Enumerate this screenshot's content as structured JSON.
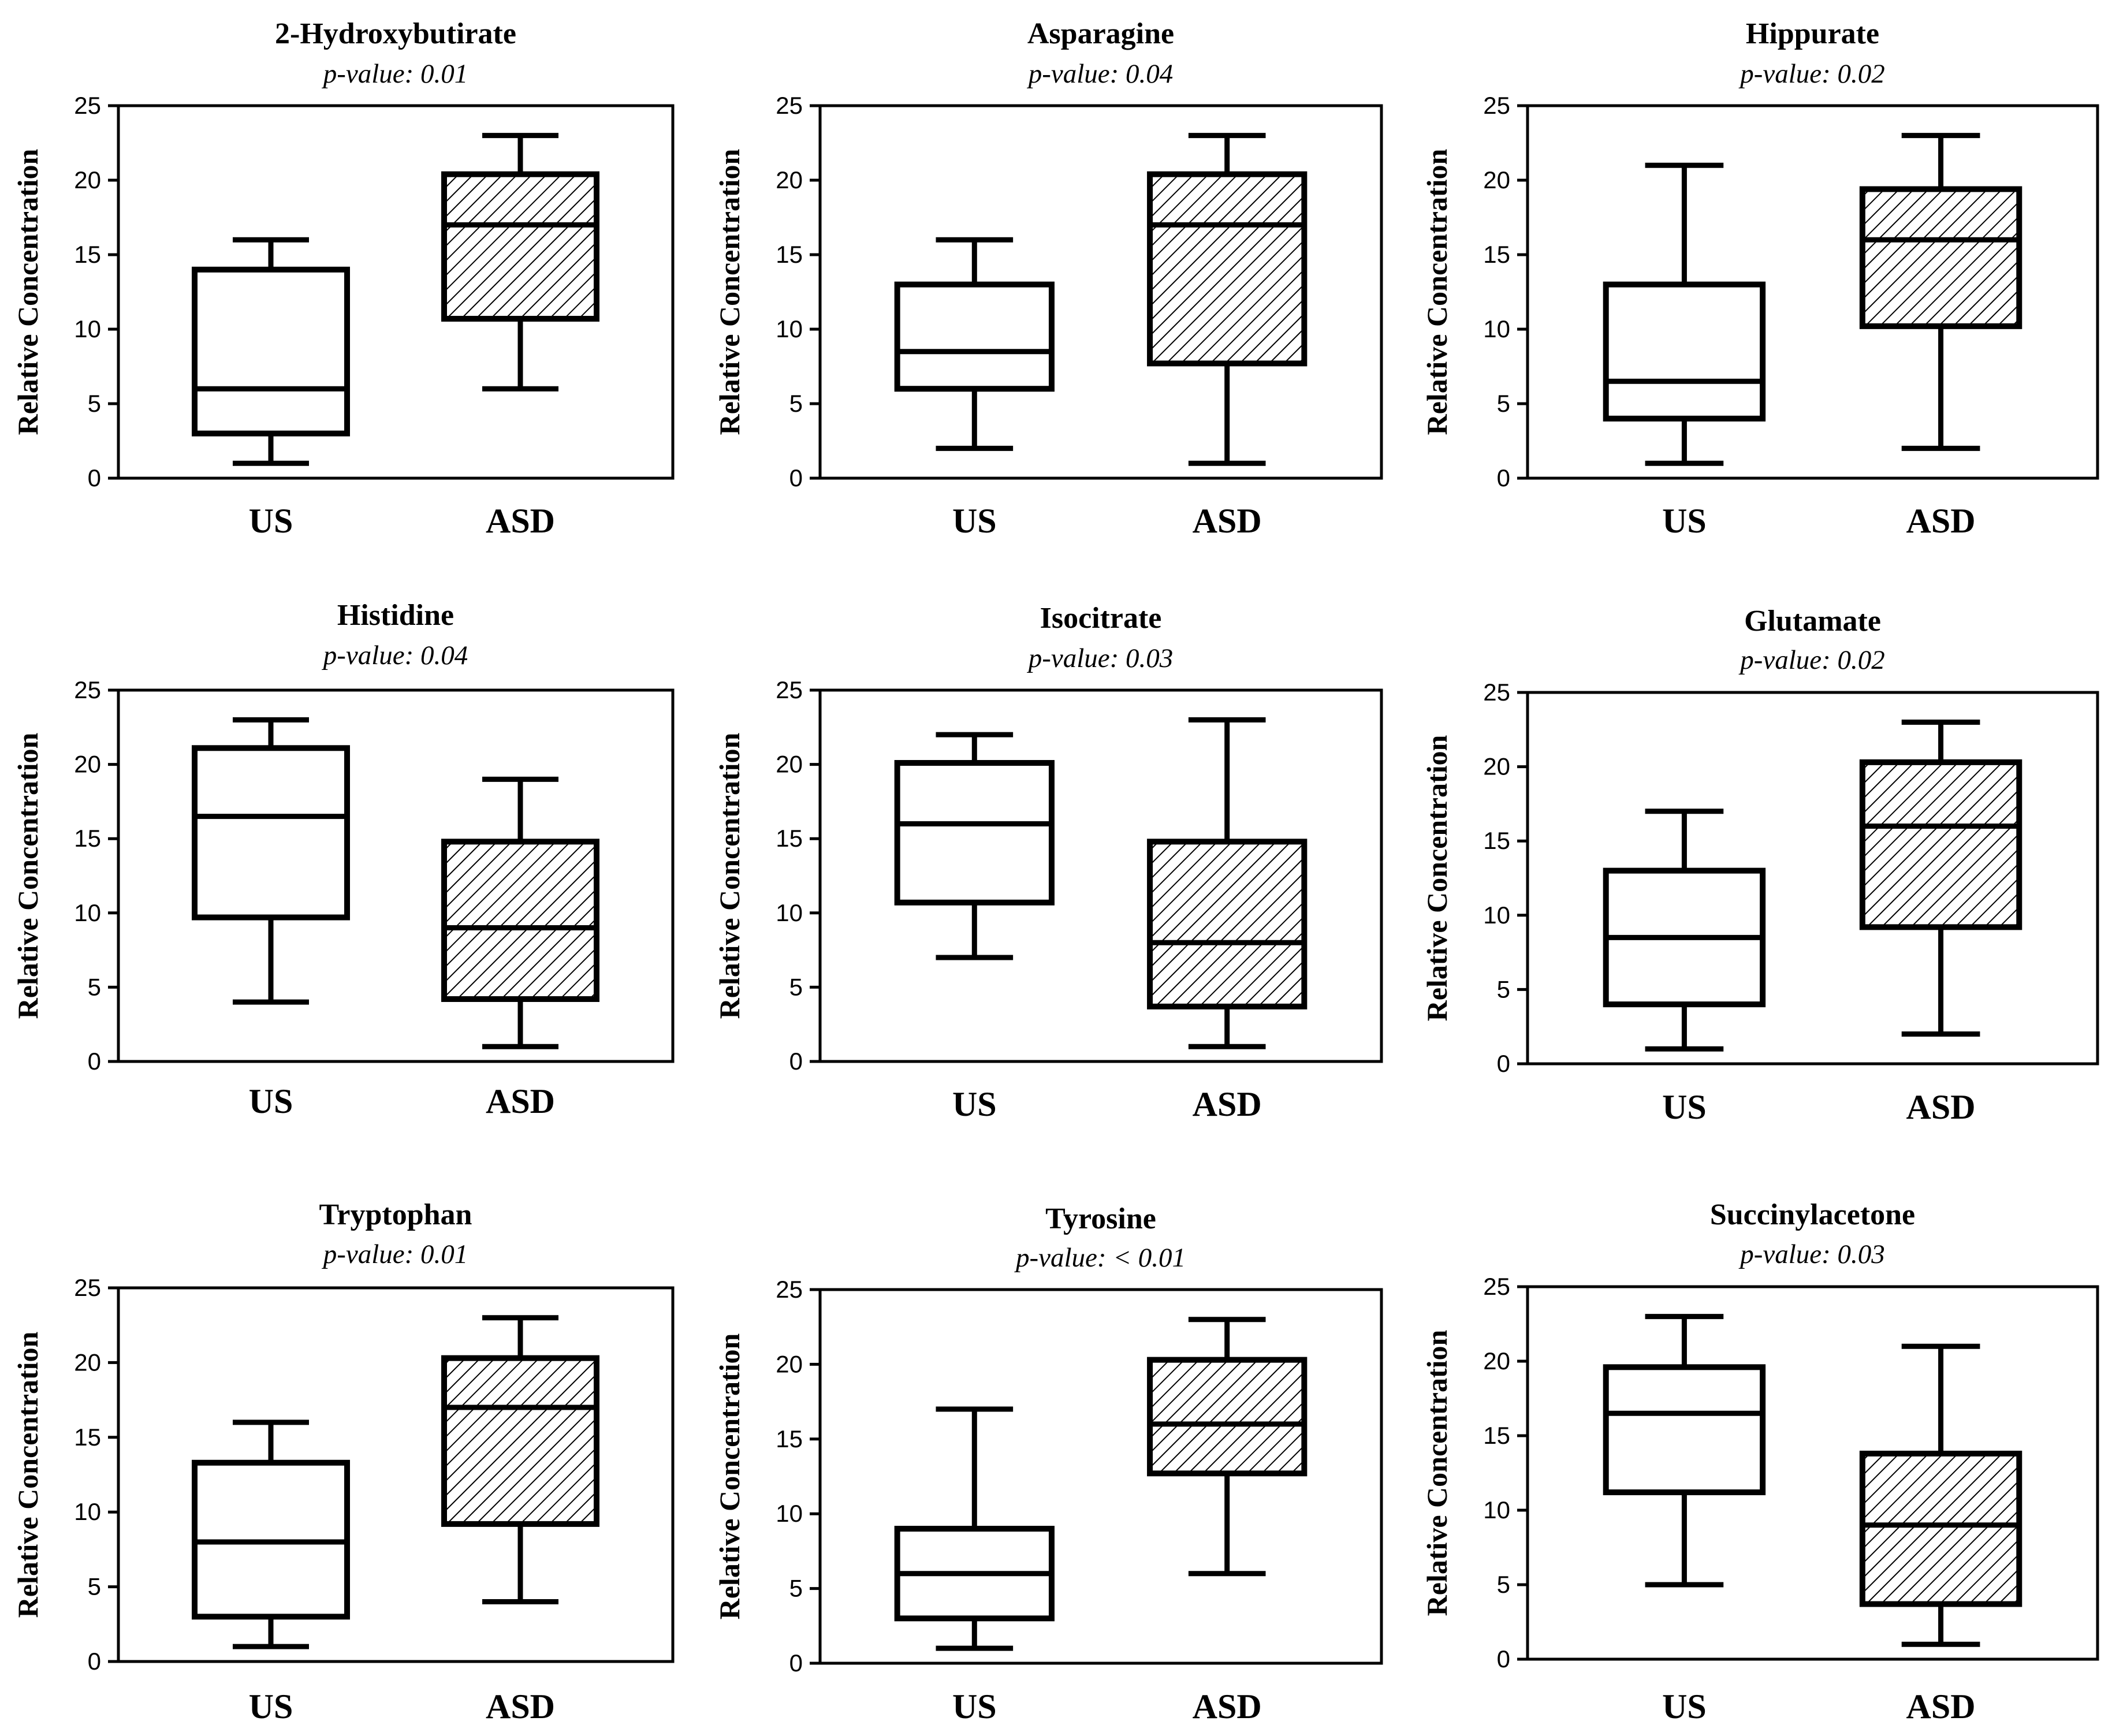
{
  "chart_data": [
    {
      "type": "box",
      "title": "2-Hydroxybutirate",
      "subtitle": "p-value: 0.01",
      "ylabel": "Relative Concentration",
      "ylim": [
        0,
        25
      ],
      "yticks": [
        "0",
        "5",
        "10",
        "15",
        "20",
        "25"
      ],
      "categories": [
        "US",
        "ASD"
      ],
      "series": [
        {
          "category": "US",
          "min": 1,
          "q1": 3,
          "median": 6,
          "q3": 14,
          "max": 16,
          "pattern": "none"
        },
        {
          "category": "ASD",
          "min": 6,
          "q1": 10.7,
          "median": 17,
          "q3": 20.4,
          "max": 23,
          "pattern": "hatched"
        }
      ]
    },
    {
      "type": "box",
      "title": "Asparagine",
      "subtitle": "p-value: 0.04",
      "ylabel": "Relative Concentration",
      "ylim": [
        0,
        25
      ],
      "yticks": [
        "0",
        "5",
        "10",
        "15",
        "20",
        "25"
      ],
      "categories": [
        "US",
        "ASD"
      ],
      "series": [
        {
          "category": "US",
          "min": 2,
          "q1": 6,
          "median": 8.5,
          "q3": 13,
          "max": 16,
          "pattern": "none"
        },
        {
          "category": "ASD",
          "min": 1,
          "q1": 7.7,
          "median": 17,
          "q3": 20.4,
          "max": 23,
          "pattern": "hatched"
        }
      ]
    },
    {
      "type": "box",
      "title": "Hippurate",
      "subtitle": "p-value: 0.02",
      "ylabel": "Relative Concentration",
      "ylim": [
        0,
        25
      ],
      "yticks": [
        "0",
        "5",
        "10",
        "15",
        "20",
        "25"
      ],
      "categories": [
        "US",
        "ASD"
      ],
      "series": [
        {
          "category": "US",
          "min": 1,
          "q1": 4,
          "median": 6.5,
          "q3": 13,
          "max": 21,
          "pattern": "none"
        },
        {
          "category": "ASD",
          "min": 2,
          "q1": 10.2,
          "median": 16,
          "q3": 19.4,
          "max": 23,
          "pattern": "hatched"
        }
      ]
    },
    {
      "type": "box",
      "title": "Histidine",
      "subtitle": "p-value: 0.04",
      "ylabel": "Relative Concentration",
      "ylim": [
        0,
        25
      ],
      "yticks": [
        "0",
        "5",
        "10",
        "15",
        "20",
        "25"
      ],
      "categories": [
        "US",
        "ASD"
      ],
      "series": [
        {
          "category": "US",
          "min": 4,
          "q1": 9.7,
          "median": 16.5,
          "q3": 21.1,
          "max": 23,
          "pattern": "none"
        },
        {
          "category": "ASD",
          "min": 1,
          "q1": 4.2,
          "median": 9,
          "q3": 14.8,
          "max": 19,
          "pattern": "hatched"
        }
      ]
    },
    {
      "type": "box",
      "title": "Isocitrate",
      "subtitle": "p-value: 0.03",
      "ylabel": "Relative Concentration",
      "ylim": [
        0,
        25
      ],
      "yticks": [
        "0",
        "5",
        "10",
        "15",
        "20",
        "25"
      ],
      "categories": [
        "US",
        "ASD"
      ],
      "series": [
        {
          "category": "US",
          "min": 7,
          "q1": 10.7,
          "median": 16,
          "q3": 20.1,
          "max": 22,
          "pattern": "none"
        },
        {
          "category": "ASD",
          "min": 1,
          "q1": 3.7,
          "median": 8,
          "q3": 14.8,
          "max": 23,
          "pattern": "hatched"
        }
      ]
    },
    {
      "type": "box",
      "title": "Glutamate",
      "subtitle": "p-value: 0.02",
      "ylabel": "Relative Concentration",
      "ylim": [
        0,
        25
      ],
      "yticks": [
        "0",
        "5",
        "10",
        "15",
        "20",
        "25"
      ],
      "categories": [
        "US",
        "ASD"
      ],
      "series": [
        {
          "category": "US",
          "min": 1,
          "q1": 4,
          "median": 8.5,
          "q3": 13,
          "max": 17,
          "pattern": "none"
        },
        {
          "category": "ASD",
          "min": 2,
          "q1": 9.2,
          "median": 16,
          "q3": 20.3,
          "max": 23,
          "pattern": "hatched"
        }
      ]
    },
    {
      "type": "box",
      "title": "Tryptophan",
      "subtitle": "p-value: 0.01",
      "ylabel": "Relative Concentration",
      "ylim": [
        0,
        25
      ],
      "yticks": [
        "0",
        "5",
        "10",
        "15",
        "20",
        "25"
      ],
      "categories": [
        "US",
        "ASD"
      ],
      "series": [
        {
          "category": "US",
          "min": 1,
          "q1": 3,
          "median": 8,
          "q3": 13.3,
          "max": 16,
          "pattern": "none"
        },
        {
          "category": "ASD",
          "min": 4,
          "q1": 9.2,
          "median": 17,
          "q3": 20.3,
          "max": 23,
          "pattern": "hatched"
        }
      ]
    },
    {
      "type": "box",
      "title": "Tyrosine",
      "subtitle": "p-value: < 0.01",
      "ylabel": "Relative Concentration",
      "ylim": [
        0,
        25
      ],
      "yticks": [
        "0",
        "5",
        "10",
        "15",
        "20",
        "25"
      ],
      "categories": [
        "US",
        "ASD"
      ],
      "series": [
        {
          "category": "US",
          "min": 1,
          "q1": 3,
          "median": 6,
          "q3": 9,
          "max": 17,
          "pattern": "none"
        },
        {
          "category": "ASD",
          "min": 6,
          "q1": 12.7,
          "median": 16,
          "q3": 20.3,
          "max": 23,
          "pattern": "hatched"
        }
      ]
    },
    {
      "type": "box",
      "title": "Succinylacetone",
      "subtitle": "p-value: 0.03",
      "ylabel": "Relative Concentration",
      "ylim": [
        0,
        25
      ],
      "yticks": [
        "0",
        "5",
        "10",
        "15",
        "20",
        "25"
      ],
      "categories": [
        "US",
        "ASD"
      ],
      "series": [
        {
          "category": "US",
          "min": 5,
          "q1": 11.2,
          "median": 16.5,
          "q3": 19.6,
          "max": 23,
          "pattern": "none"
        },
        {
          "category": "ASD",
          "min": 1,
          "q1": 3.7,
          "median": 9,
          "q3": 13.8,
          "max": 21,
          "pattern": "hatched"
        }
      ]
    }
  ]
}
